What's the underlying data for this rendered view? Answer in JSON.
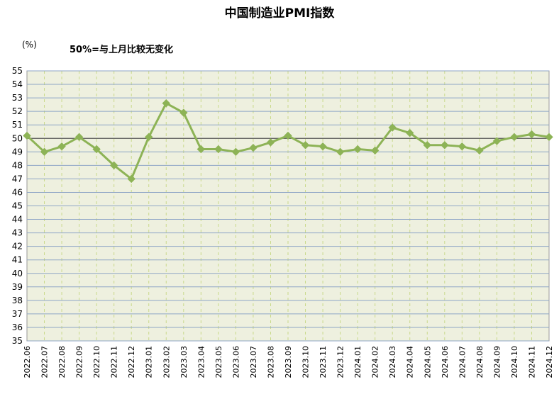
{
  "chart_data": {
    "type": "line",
    "title": "中国制造业PMI指数",
    "unit_label": "(%)",
    "note": "50%=与上月比较无变化",
    "xlabel": "",
    "ylabel": "",
    "ylim": [
      35,
      55
    ],
    "ytick_step": 1,
    "reference_line": 50,
    "grid": true,
    "categories": [
      "2022.06",
      "2022.07",
      "2022.08",
      "2022.09",
      "2022.10",
      "2022.11",
      "2022.12",
      "2023.01",
      "2023.02",
      "2023.03",
      "2023.04",
      "2023.05",
      "2023.06",
      "2023.07",
      "2023.08",
      "2023.09",
      "2023.10",
      "2023.11",
      "2023.12",
      "2024.01",
      "2024.02",
      "2024.03",
      "2024.04",
      "2024.05",
      "2024.06",
      "2024.07",
      "2024.08",
      "2024.09",
      "2024.10",
      "2024.11",
      "2024.12"
    ],
    "series": [
      {
        "name": "",
        "values": [
          50.2,
          49.0,
          49.4,
          50.1,
          49.2,
          48.0,
          47.0,
          50.1,
          52.6,
          51.9,
          49.2,
          49.2,
          49.0,
          49.3,
          49.7,
          50.2,
          49.5,
          49.4,
          49.0,
          49.2,
          49.1,
          50.8,
          50.4,
          49.5,
          49.5,
          49.4,
          49.1,
          49.8,
          50.1,
          50.3,
          50.1
        ],
        "color": "#8db356"
      }
    ],
    "colors": {
      "plot_background": "#eef0df",
      "grid_horizontal": "#8fa6c6",
      "grid_vertical": "#c9d98a",
      "reference_line": "#555555"
    }
  }
}
